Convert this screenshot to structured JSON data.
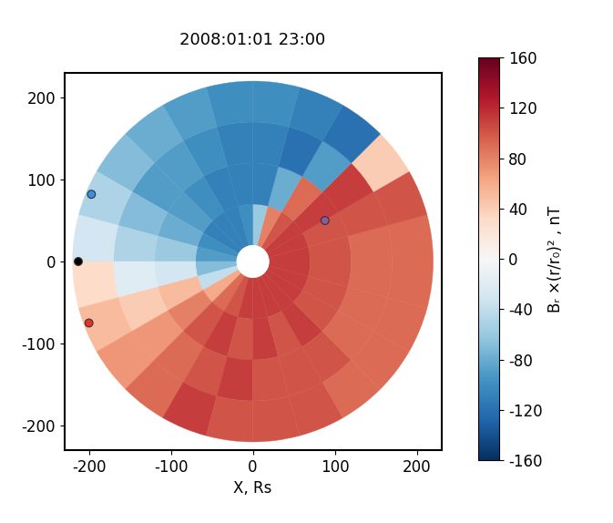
{
  "chart_data": {
    "type": "polar_heatmap",
    "title": "2008:01:01 23:00",
    "x_label": "X, Rs",
    "xlim": [
      -230,
      230
    ],
    "ylim": [
      -230,
      230
    ],
    "xticks": [
      -200,
      -100,
      0,
      100,
      200
    ],
    "yticks": [
      -200,
      -100,
      0,
      100,
      200
    ],
    "radius_edges": [
      20,
      70,
      120,
      170,
      220
    ],
    "angle_edges": [
      0,
      15,
      30,
      45,
      60,
      75,
      90,
      105,
      120,
      135,
      150,
      165,
      180,
      195,
      210,
      225,
      240,
      255,
      270,
      285,
      300,
      315,
      330,
      345,
      360
    ],
    "cells": [
      [
        110,
        110,
        110,
        100,
        80,
        -60,
        -100,
        -110,
        -110,
        -110,
        -100,
        -90,
        -70,
        -40,
        60,
        90,
        100,
        110,
        110,
        110,
        110,
        110,
        110,
        110
      ],
      [
        100,
        100,
        110,
        90,
        -80,
        -110,
        -110,
        -110,
        -100,
        -90,
        -80,
        -60,
        -30,
        50,
        80,
        100,
        110,
        100,
        110,
        100,
        110,
        100,
        100,
        100
      ],
      [
        90,
        100,
        110,
        -90,
        -120,
        -110,
        -110,
        -100,
        -90,
        -90,
        -70,
        -50,
        -20,
        40,
        70,
        90,
        100,
        110,
        100,
        100,
        100,
        90,
        90,
        90
      ],
      [
        90,
        100,
        40,
        -120,
        -110,
        -100,
        -100,
        -90,
        -80,
        -70,
        -50,
        -30,
        30,
        50,
        70,
        90,
        110,
        100,
        100,
        100,
        90,
        90,
        90,
        90
      ]
    ],
    "colorbar_label": "Bᵣ ×(r/r₀)² , nT",
    "colorbar_range": [
      -160,
      160
    ],
    "colorbar_ticks": [
      -160,
      -120,
      -80,
      -40,
      0,
      40,
      80,
      120,
      160
    ],
    "points": {
      "x": [
        -197,
        -213,
        -200,
        88
      ],
      "y": [
        82,
        0,
        -75,
        50
      ],
      "colors": [
        "#3a8ee6",
        "#000000",
        "#e8302a",
        "#8e5a9e"
      ]
    }
  }
}
